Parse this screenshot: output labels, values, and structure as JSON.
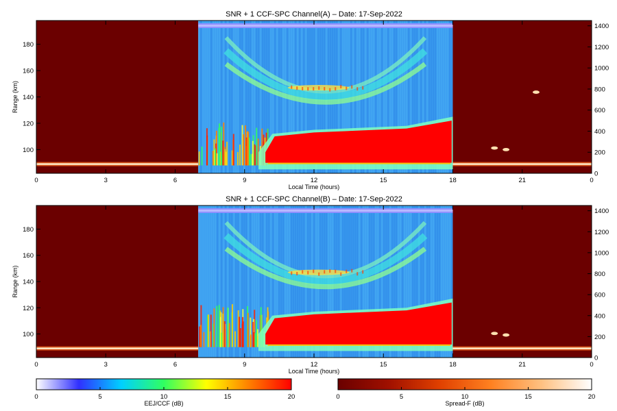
{
  "chart_data": [
    {
      "type": "heatmap",
      "title": "SNR + 1 CCF-SPC Channel(A) – Date: 17-Sep-2022",
      "xlabel": "Local Time (hours)",
      "ylabel": "Range (km)",
      "x_ticks": [
        "0",
        "3",
        "6",
        "9",
        "12",
        "15",
        "18",
        "21",
        "0"
      ],
      "x_range": [
        0,
        24
      ],
      "y_ticks": [
        100,
        120,
        140,
        160,
        180
      ],
      "y_range": [
        82,
        198
      ],
      "y2_ticks": [
        0,
        200,
        400,
        600,
        800,
        1000,
        1200,
        1400
      ],
      "y2_range": [
        0,
        1450
      ],
      "segments": [
        {
          "name": "night",
          "x_range": [
            0,
            7
          ],
          "colorscale": "Spread-F (dB)"
        },
        {
          "name": "day",
          "x_range": [
            7,
            18
          ],
          "colorscale": "EEJ/CCF (dB)"
        },
        {
          "name": "night",
          "x_range": [
            18,
            24
          ],
          "colorscale": "Spread-F (dB)"
        }
      ],
      "features": {
        "night_layer_range_km": 89,
        "night_patches_y2": [
          {
            "x": 19.8,
            "y2": 240
          },
          {
            "x": 20.3,
            "y2": 225
          },
          {
            "x": 21.6,
            "y2": 770
          }
        ],
        "eej_band_range_km": [
          88,
          120
        ],
        "eej_dense_start_hour": 9.8,
        "valley_arc_range_km": [
          140,
          175
        ]
      }
    },
    {
      "type": "heatmap",
      "title": "SNR + 1 CCF-SPC Channel(B) – Date: 17-Sep-2022",
      "xlabel": "Local Time (hours)",
      "ylabel": "Range (km)",
      "x_ticks": [
        "0",
        "3",
        "6",
        "9",
        "12",
        "15",
        "18",
        "21",
        "0"
      ],
      "x_range": [
        0,
        24
      ],
      "y_ticks": [
        100,
        120,
        140,
        160,
        180
      ],
      "y_range": [
        82,
        198
      ],
      "y2_ticks": [
        0,
        200,
        400,
        600,
        800,
        1000,
        1200,
        1400
      ],
      "y2_range": [
        0,
        1450
      ],
      "segments": [
        {
          "name": "night",
          "x_range": [
            0,
            7
          ],
          "colorscale": "Spread-F (dB)"
        },
        {
          "name": "day",
          "x_range": [
            7,
            18
          ],
          "colorscale": "EEJ/CCF (dB)"
        },
        {
          "name": "night",
          "x_range": [
            18,
            24
          ],
          "colorscale": "Spread-F (dB)"
        }
      ],
      "features": {
        "night_layer_range_km": 89,
        "night_patches_y2": [
          {
            "x": 19.8,
            "y2": 230
          },
          {
            "x": 20.3,
            "y2": 215
          }
        ],
        "eej_band_range_km": [
          90,
          122
        ],
        "eej_dense_start_hour": 9.8,
        "valley_arc_range_km": [
          140,
          175
        ]
      }
    }
  ],
  "colorbars": [
    {
      "label": "EEJ/CCF (dB)",
      "ticks": [
        "0",
        "5",
        "10",
        "15",
        "20"
      ],
      "range": [
        0,
        20
      ],
      "colors": [
        "#ffffff",
        "#3030ff",
        "#00d0ff",
        "#30ff60",
        "#ffff00",
        "#ff8000",
        "#ff0000"
      ]
    },
    {
      "label": "Spread-F (dB)",
      "ticks": [
        "0",
        "5",
        "10",
        "15",
        "20"
      ],
      "range": [
        0,
        20
      ],
      "colors": [
        "#6a0000",
        "#a01000",
        "#e04000",
        "#ff8020",
        "#ffc080",
        "#ffffff"
      ]
    }
  ]
}
